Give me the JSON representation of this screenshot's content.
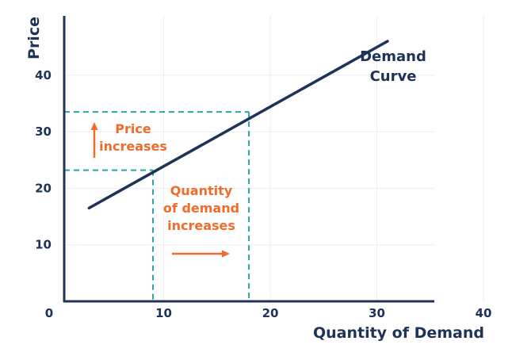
{
  "chart_data": {
    "type": "line",
    "title": "",
    "xlabel": "Quantity of Demand",
    "ylabel": "Price",
    "xlim": [
      0,
      40
    ],
    "ylim": [
      0,
      48
    ],
    "grid": true,
    "x_ticks": [
      {
        "value": 0,
        "label": "0"
      },
      {
        "value": 10,
        "label": "10"
      },
      {
        "value": 20,
        "label": "20"
      },
      {
        "value": 30,
        "label": "30"
      },
      {
        "value": 40,
        "label": "40"
      }
    ],
    "y_ticks": [
      {
        "value": 10,
        "label": "10"
      },
      {
        "value": 20,
        "label": "20"
      },
      {
        "value": 30,
        "label": "30"
      },
      {
        "value": 40,
        "label": "40"
      }
    ],
    "series": [
      {
        "name": "Demand Curve",
        "label_lines": [
          "Demand",
          "Curve"
        ],
        "x": [
          3,
          31
        ],
        "y": [
          16.5,
          46
        ]
      }
    ],
    "reference_points": [
      {
        "x": 9,
        "y": 23.2
      },
      {
        "x": 18,
        "y": 33.5
      }
    ],
    "annotations": {
      "price": [
        "Price",
        "increases"
      ],
      "quantity": [
        "Quantity",
        "of demand",
        "increases"
      ]
    },
    "colors": {
      "axis": "#1e3358",
      "curve": "#1e3358",
      "guide": "#2aa4a0",
      "annotation": "#ef6c2b",
      "grid": "#eeeeee"
    }
  }
}
